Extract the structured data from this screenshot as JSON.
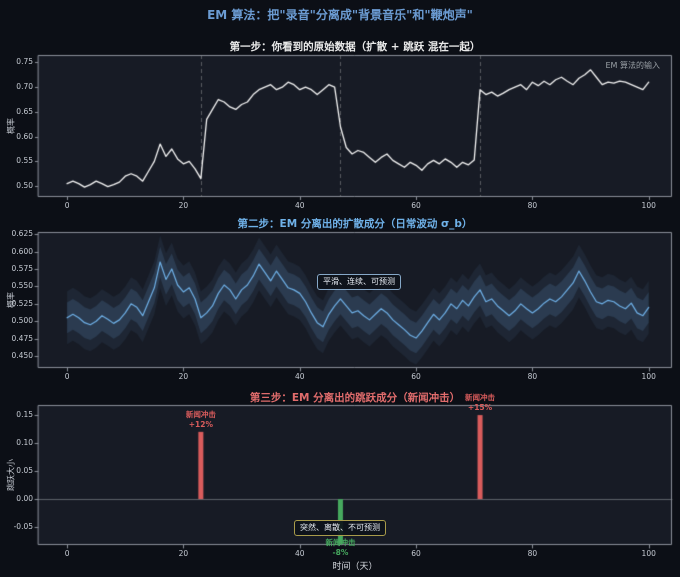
{
  "title": "EM 算法：把\"录音\"分离成\"背景音乐\"和\"鞭炮声\"",
  "colors": {
    "fig_bg": "#0c0f16",
    "axes_bg": "#171b25",
    "spine": "#8b9099",
    "tick_text": "#c6cbd3",
    "main_title": "#6b9bd2",
    "step1_title": "#e9e9e9",
    "step2_accent": "#6fb1e8",
    "step3_accent": "#e06c6c",
    "observed_line": "#f5f5f5",
    "diffusion_line": "#6fb1e8",
    "band_inner": "rgba(111,177,232,0.16)",
    "band_outer": "rgba(111,177,232,0.08)",
    "jump_up": "#d95c5c",
    "jump_down": "#46a95e",
    "dashed_guide": "rgba(170,170,170,0.45)",
    "zero_line": "rgba(200,205,210,0.4)",
    "note_text": "#9aa0a6"
  },
  "chart_data": [
    {
      "type": "line",
      "title": "第一步：你看到的原始数据（扩散 + 跳跃 混在一起）",
      "ylabel": "概率",
      "legend_note": "EM 算法的输入",
      "yticks": [
        "0.50",
        "0.55",
        "0.60",
        "0.65",
        "0.70",
        "0.75"
      ],
      "xticks": [
        "0",
        "20",
        "40",
        "60",
        "80",
        "100"
      ],
      "ylim": [
        0.478,
        0.765
      ],
      "xlim": [
        -5,
        104
      ],
      "x_start": 0,
      "x_step": 1,
      "jump_days": [
        23,
        47,
        71
      ],
      "values": [
        0.505,
        0.51,
        0.505,
        0.498,
        0.503,
        0.51,
        0.505,
        0.499,
        0.503,
        0.508,
        0.52,
        0.525,
        0.52,
        0.51,
        0.53,
        0.55,
        0.585,
        0.56,
        0.575,
        0.555,
        0.545,
        0.55,
        0.535,
        0.515,
        0.635,
        0.655,
        0.675,
        0.67,
        0.66,
        0.655,
        0.665,
        0.67,
        0.685,
        0.695,
        0.7,
        0.705,
        0.695,
        0.7,
        0.71,
        0.705,
        0.695,
        0.7,
        0.695,
        0.685,
        0.695,
        0.705,
        0.7,
        0.62,
        0.578,
        0.565,
        0.572,
        0.568,
        0.558,
        0.548,
        0.558,
        0.565,
        0.552,
        0.545,
        0.538,
        0.548,
        0.542,
        0.532,
        0.545,
        0.552,
        0.545,
        0.555,
        0.548,
        0.538,
        0.548,
        0.543,
        0.553,
        0.695,
        0.685,
        0.69,
        0.682,
        0.688,
        0.695,
        0.7,
        0.705,
        0.695,
        0.71,
        0.703,
        0.712,
        0.705,
        0.715,
        0.72,
        0.712,
        0.705,
        0.718,
        0.725,
        0.735,
        0.72,
        0.705,
        0.71,
        0.708,
        0.712,
        0.71,
        0.705,
        0.7,
        0.695,
        0.71
      ]
    },
    {
      "type": "area",
      "title": "第二步：EM 分离出的扩散成分（日常波动 σ_b）",
      "ylabel": "概率",
      "annotation": "平滑、连续、可预测",
      "yticks": [
        "0.450",
        "0.475",
        "0.500",
        "0.525",
        "0.550",
        "0.575",
        "0.600",
        "0.625"
      ],
      "xticks": [
        "0",
        "20",
        "40",
        "60",
        "80",
        "100"
      ],
      "ylim": [
        0.433,
        0.628
      ],
      "xlim": [
        -5,
        104
      ],
      "x_start": 0,
      "x_step": 1,
      "band_halfwidth": 0.022,
      "outer_band_halfwidth": 0.038,
      "values": [
        0.505,
        0.51,
        0.505,
        0.498,
        0.495,
        0.5,
        0.508,
        0.503,
        0.497,
        0.502,
        0.512,
        0.525,
        0.52,
        0.508,
        0.528,
        0.548,
        0.585,
        0.56,
        0.575,
        0.552,
        0.542,
        0.548,
        0.532,
        0.505,
        0.512,
        0.522,
        0.54,
        0.552,
        0.545,
        0.532,
        0.545,
        0.552,
        0.565,
        0.582,
        0.57,
        0.558,
        0.572,
        0.56,
        0.548,
        0.545,
        0.54,
        0.528,
        0.512,
        0.498,
        0.492,
        0.51,
        0.522,
        0.532,
        0.522,
        0.512,
        0.515,
        0.508,
        0.502,
        0.51,
        0.518,
        0.512,
        0.502,
        0.495,
        0.488,
        0.48,
        0.476,
        0.486,
        0.498,
        0.51,
        0.502,
        0.512,
        0.525,
        0.518,
        0.53,
        0.522,
        0.535,
        0.545,
        0.528,
        0.532,
        0.522,
        0.515,
        0.508,
        0.515,
        0.525,
        0.518,
        0.512,
        0.518,
        0.526,
        0.532,
        0.528,
        0.535,
        0.545,
        0.555,
        0.572,
        0.558,
        0.542,
        0.528,
        0.525,
        0.53,
        0.528,
        0.522,
        0.518,
        0.526,
        0.512,
        0.508,
        0.52
      ]
    },
    {
      "type": "bar",
      "title": "第三步：EM 分离出的跳跃成分（新闻冲击）",
      "ylabel": "跳跃大小",
      "xlabel": "时间（天）",
      "annotation": "突然、离散、不可预测",
      "yticks": [
        "-0.05",
        "0.00",
        "0.05",
        "0.10",
        "0.15"
      ],
      "xticks": [
        "0",
        "20",
        "40",
        "60",
        "80",
        "100"
      ],
      "ylim": [
        -0.082,
        0.168
      ],
      "xlim": [
        -5,
        104
      ],
      "bars": [
        {
          "day": 23,
          "size": 0.12,
          "label": "新闻冲击",
          "value_label": "+12%",
          "color": "#d95c5c"
        },
        {
          "day": 47,
          "size": -0.08,
          "label": "新闻冲击",
          "value_label": "-8%",
          "color": "#46a95e"
        },
        {
          "day": 71,
          "size": 0.15,
          "label": "新闻冲击",
          "value_label": "+15%",
          "color": "#d95c5c"
        }
      ]
    }
  ]
}
